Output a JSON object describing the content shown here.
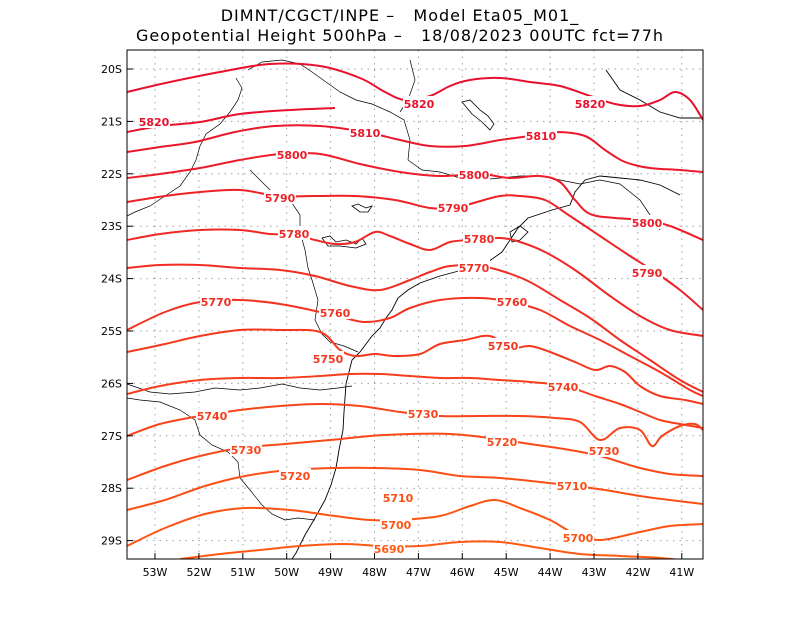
{
  "title_line1": "DIMNT/CGCT/INPE –   Model Eta05_M01_",
  "title_line2": "Geopotential Height 500hPa –   18/08/2023 00UTC fct=77h",
  "chart_data": {
    "type": "contour-map",
    "variable": "Geopotential Height 500hPa",
    "lon_range": [
      -53.6,
      -40.5
    ],
    "lat_range": [
      -19.8,
      -29.4
    ],
    "x_ticks": [
      "53W",
      "52W",
      "51W",
      "50W",
      "49W",
      "48W",
      "47W",
      "46W",
      "45W",
      "44W",
      "43W",
      "42W",
      "41W"
    ],
    "y_ticks": [
      "20S",
      "21S",
      "22S",
      "23S",
      "24S",
      "25S",
      "26S",
      "27S",
      "28S",
      "29S"
    ],
    "contour_interval": 10,
    "contour_levels": [
      5690,
      5700,
      5710,
      5720,
      5730,
      5740,
      5750,
      5760,
      5770,
      5780,
      5790,
      5800,
      5810,
      5820
    ],
    "colors": {
      "high": "#e8112d",
      "low": "#ff5a12",
      "coast": "#000000",
      "grid": "#a0a0a0"
    },
    "contour_lines": [
      {
        "level": 5820,
        "labels": [
          "5820",
          "5820",
          "5820"
        ]
      },
      {
        "level": 5810,
        "labels": [
          "5810",
          "5810"
        ]
      },
      {
        "level": 5800,
        "labels": [
          "5800",
          "5800",
          "5800"
        ]
      },
      {
        "level": 5790,
        "labels": [
          "5790",
          "5790",
          "5790"
        ]
      },
      {
        "level": 5780,
        "labels": [
          "5780",
          "5780"
        ]
      },
      {
        "level": 5770,
        "labels": [
          "5770",
          "5770"
        ]
      },
      {
        "level": 5760,
        "labels": [
          "5760",
          "5760"
        ]
      },
      {
        "level": 5750,
        "labels": [
          "5750",
          "5750"
        ]
      },
      {
        "level": 5740,
        "labels": [
          "5740",
          "5740"
        ]
      },
      {
        "level": 5730,
        "labels": [
          "5730",
          "5730",
          "5730"
        ]
      },
      {
        "level": 5720,
        "labels": [
          "5720",
          "5720"
        ]
      },
      {
        "level": 5710,
        "labels": [
          "5710",
          "5710"
        ]
      },
      {
        "level": 5700,
        "labels": [
          "5700",
          "5700"
        ]
      },
      {
        "level": 5690,
        "labels": [
          "5690"
        ]
      }
    ]
  }
}
